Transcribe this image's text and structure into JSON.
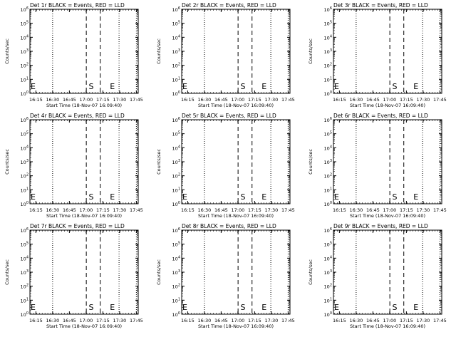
{
  "panels": {
    "grid": {
      "rows": 3,
      "cols": 3
    },
    "x_tick_labels": [
      "16:15",
      "16:30",
      "16:45",
      "17:00",
      "17:15",
      "17:30",
      "17:45"
    ],
    "x_axis_label": "Start Time (18-Nov-07 16:09:40)",
    "y_axis_label": "Counts/sec",
    "y_tick_labels": [
      {
        "base": "10",
        "exp": "0"
      },
      {
        "base": "10",
        "exp": "1"
      },
      {
        "base": "10",
        "exp": "2"
      },
      {
        "base": "10",
        "exp": "3"
      },
      {
        "base": "10",
        "exp": "4"
      },
      {
        "base": "10",
        "exp": "5"
      },
      {
        "base": "10",
        "exp": "6"
      }
    ]
  },
  "chart_data": [
    {
      "type": "line",
      "title": "Det 1r BLACK = Events, RED = LLD",
      "markers": [
        {
          "label": "E",
          "x_min": 0.0
        },
        {
          "label": "S",
          "x_min": 52.0
        },
        {
          "label": "E",
          "x_min": 71.0
        }
      ]
    },
    {
      "type": "line",
      "title": "Det 2r BLACK = Events, RED = LLD",
      "markers": [
        {
          "label": "E",
          "x_min": 0.0
        },
        {
          "label": "S",
          "x_min": 52.0
        },
        {
          "label": "E",
          "x_min": 71.0
        }
      ]
    },
    {
      "type": "line",
      "title": "Det 3r BLACK = Events, RED = LLD",
      "markers": [
        {
          "label": "E",
          "x_min": 0.0
        },
        {
          "label": "S",
          "x_min": 52.0
        },
        {
          "label": "E",
          "x_min": 71.0
        }
      ]
    },
    {
      "type": "line",
      "title": "Det 4r BLACK = Events, RED = LLD",
      "markers": [
        {
          "label": "E",
          "x_min": 0.0
        },
        {
          "label": "S",
          "x_min": 52.0
        },
        {
          "label": "E",
          "x_min": 71.0
        }
      ]
    },
    {
      "type": "line",
      "title": "Det 5r BLACK = Events, RED = LLD",
      "markers": [
        {
          "label": "E",
          "x_min": 0.0
        },
        {
          "label": "S",
          "x_min": 52.0
        },
        {
          "label": "E",
          "x_min": 71.0
        }
      ]
    },
    {
      "type": "line",
      "title": "Det 6r BLACK = Events, RED = LLD",
      "markers": [
        {
          "label": "E",
          "x_min": 0.0
        },
        {
          "label": "S",
          "x_min": 52.0
        },
        {
          "label": "E",
          "x_min": 71.0
        }
      ]
    },
    {
      "type": "line",
      "title": "Det 7r BLACK = Events, RED = LLD",
      "markers": [
        {
          "label": "E",
          "x_min": 0.0
        },
        {
          "label": "S",
          "x_min": 52.0
        },
        {
          "label": "E",
          "x_min": 71.0
        }
      ]
    },
    {
      "type": "line",
      "title": "Det 8r BLACK = Events, RED = LLD",
      "markers": [
        {
          "label": "E",
          "x_min": 0.0
        },
        {
          "label": "S",
          "x_min": 52.0
        },
        {
          "label": "E",
          "x_min": 71.0
        }
      ]
    },
    {
      "type": "line",
      "title": "Det 9r BLACK = Events, RED = LLD",
      "markers": [
        {
          "label": "E",
          "x_min": 0.0
        },
        {
          "label": "S",
          "x_min": 52.0
        },
        {
          "label": "E",
          "x_min": 71.0
        }
      ]
    }
  ],
  "shared_axes": {
    "xlim_minutes_after_start": [
      0,
      97
    ],
    "x_tick_minutes_after_start": [
      5.33,
      20.33,
      35.33,
      50.33,
      65.33,
      80.33,
      95.33
    ],
    "ylim": [
      1,
      1000000
    ],
    "y_scale": "log",
    "dashed_lines_minutes_after_start": [
      50.5,
      63.0
    ],
    "dotted_lines_minutes_after_start": [
      20.33,
      79.83,
      95.33
    ],
    "colors": {
      "background": "#ffffff",
      "axes": "#000000"
    }
  }
}
